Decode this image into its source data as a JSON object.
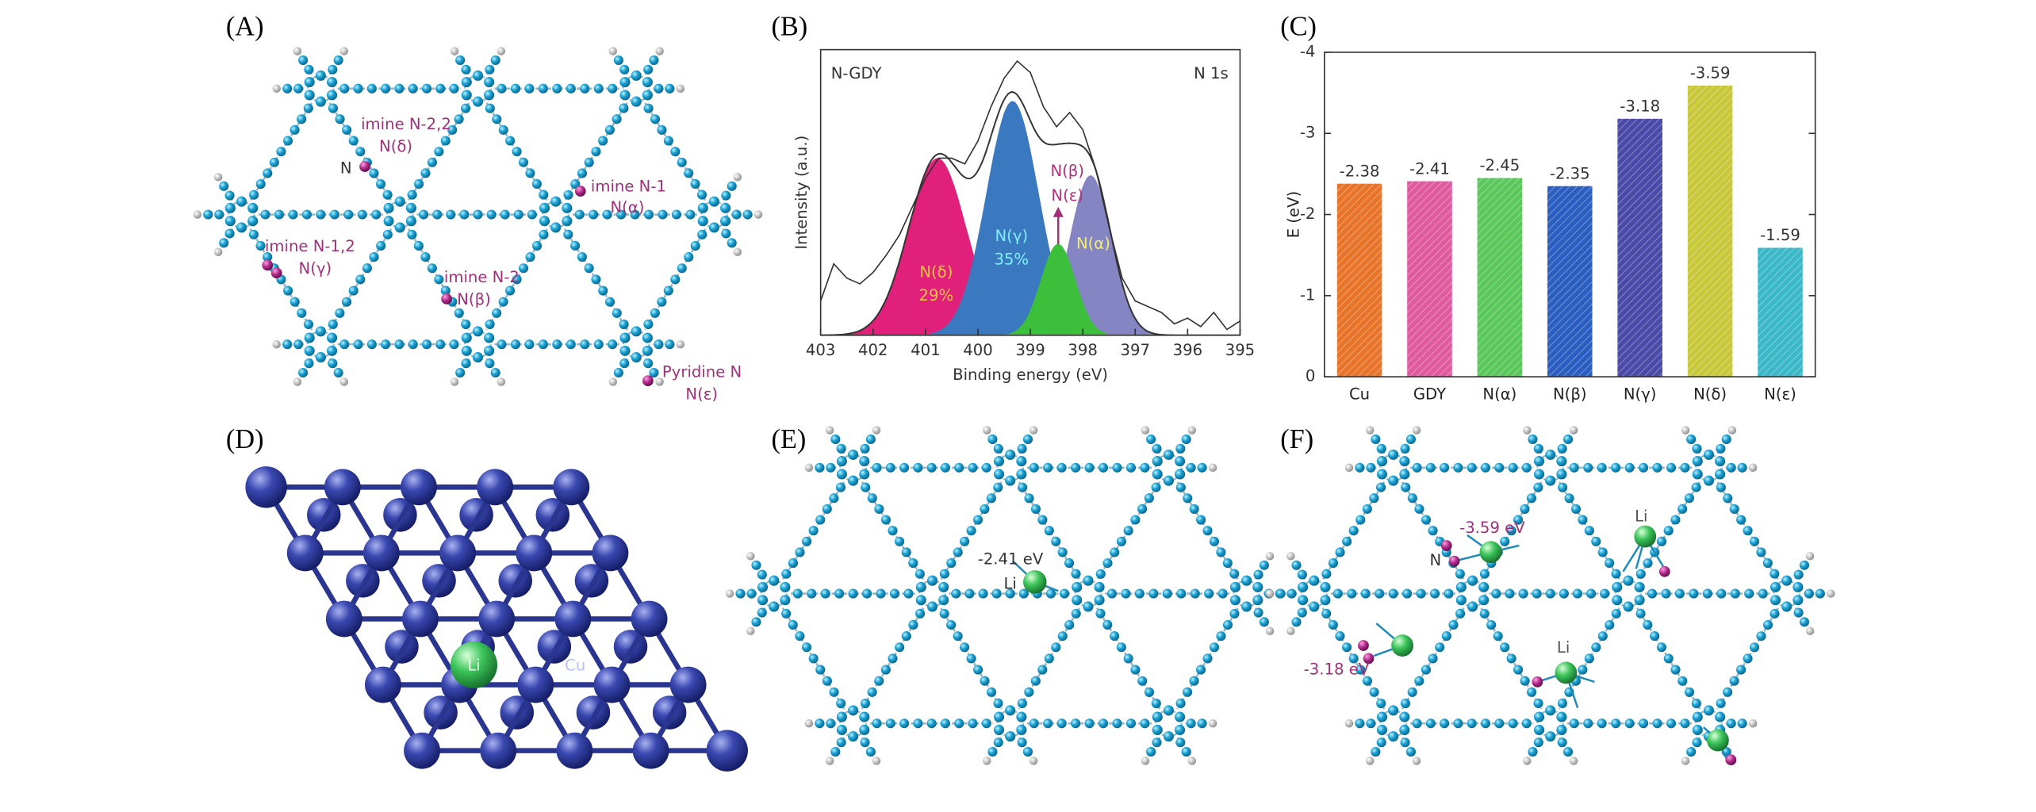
{
  "panel_labels": [
    "(A)",
    "(B)",
    "(C)",
    "(D)",
    "(E)",
    "(F)"
  ],
  "panel_a": {
    "labels": [
      "imine N-2,2",
      "N(δ)",
      "N",
      "imine N-1",
      "N(α)",
      "imine N-1,2",
      "N(γ)",
      "imine N-2",
      "N(β)",
      "Pyridine N",
      "N(ε)"
    ]
  },
  "chart_data": [
    {
      "type": "spectrum",
      "annotations": [
        "N-GDY",
        "N 1s"
      ],
      "xlabel": "Binding energy (eV)",
      "ylabel": "Intensity (a.u.)",
      "xlim": [
        403,
        395
      ],
      "xticks": [
        403,
        402,
        401,
        400,
        399,
        398,
        397,
        396,
        395
      ],
      "ylim": [
        0,
        100
      ],
      "x": [
        403,
        402.75,
        402.5,
        402.25,
        402,
        401.75,
        401.5,
        401.25,
        401,
        400.75,
        400.5,
        400.25,
        400,
        399.75,
        399.5,
        399.25,
        399,
        398.75,
        398.5,
        398.25,
        398,
        397.75,
        397.5,
        397.25,
        397,
        396.75,
        396.5,
        396.25,
        396,
        395.75,
        395.5,
        395.25,
        395
      ],
      "series": [
        {
          "color": "#333333",
          "values": [
            12,
            25,
            20,
            18,
            22,
            28,
            35,
            45,
            55,
            62,
            62,
            60,
            68,
            80,
            90,
            96,
            92,
            80,
            73,
            78,
            72,
            58,
            38,
            20,
            12,
            10,
            8,
            4,
            6,
            3,
            8,
            2,
            5
          ]
        }
      ],
      "envelope_color": "#333333",
      "peaks": [
        {
          "labels": [
            "N(δ)",
            "29%"
          ],
          "share": 29,
          "color": "#e0207a",
          "label_color": "#f5c542",
          "center": 400.77,
          "height": 62,
          "width": 0.55
        },
        {
          "labels": [
            "N(γ)",
            "35%"
          ],
          "share": 35,
          "color": "#3a78c0",
          "label_color": "#7ff0ff",
          "center": 399.34,
          "height": 82,
          "width": 0.5
        },
        {
          "labels": [
            "N(α)"
          ],
          "color": "#8585c4",
          "label_color": "#f0ee70",
          "center": 397.85,
          "height": 56,
          "width": 0.4
        },
        {
          "labels": [
            "N(β)",
            "N(ε)"
          ],
          "color": "#3cc03c",
          "label_color": "#b0307a",
          "center": 398.47,
          "height": 32,
          "width": 0.33
        }
      ]
    },
    {
      "type": "bar",
      "ylabel": "E (eV)",
      "categories": [
        "Cu",
        "GDY",
        "N(α)",
        "N(β)",
        "N(γ)",
        "N(δ)",
        "N(ε)"
      ],
      "values": [
        -2.38,
        -2.41,
        -2.45,
        -2.35,
        -3.18,
        -3.59,
        -1.59
      ],
      "colors": [
        "#e8742a",
        "#e05aa0",
        "#5ac85a",
        "#2a5ec0",
        "#4a4aa8",
        "#c8c83a",
        "#3ab8c8"
      ],
      "ylim": [
        0,
        -4
      ],
      "yticks": [
        0,
        -1,
        -2,
        -3,
        -4
      ]
    }
  ],
  "panel_d": {
    "labels": [
      "Li",
      "Cu"
    ]
  },
  "panel_e": {
    "labels": [
      "-2.41 eV",
      "Li"
    ]
  },
  "panel_f": {
    "labels": [
      "-3.59 eV",
      "N",
      "Li",
      "Li",
      "-3.18 eV"
    ]
  }
}
